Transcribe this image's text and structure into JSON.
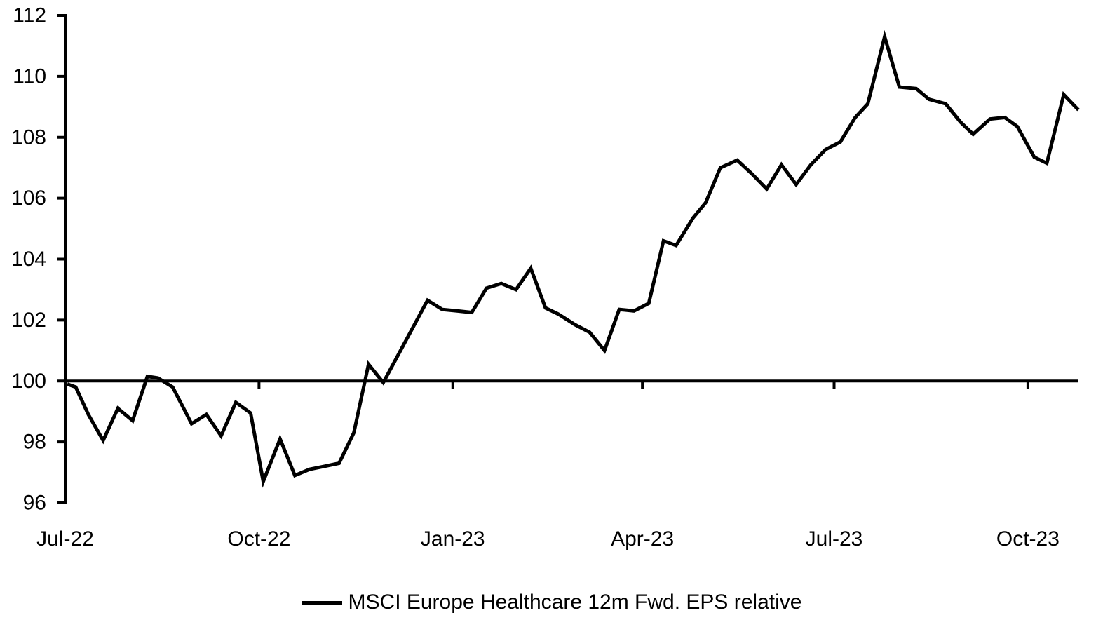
{
  "chart_data": {
    "type": "line",
    "title": "",
    "grid": false,
    "legend_position": "bottom",
    "background_color": "#ffffff",
    "axis_color": "#000000",
    "baseline_value": 100,
    "ylim": [
      96,
      112
    ],
    "y_ticks": [
      112,
      110,
      108,
      106,
      104,
      102,
      100,
      98,
      96
    ],
    "x_ticks": [
      {
        "date": "2022-07-01",
        "label": "Jul-22"
      },
      {
        "date": "2022-10-01",
        "label": "Oct-22"
      },
      {
        "date": "2023-01-01",
        "label": "Jan-23"
      },
      {
        "date": "2023-04-01",
        "label": "Apr-23"
      },
      {
        "date": "2023-07-01",
        "label": "Jul-23"
      },
      {
        "date": "2023-10-01",
        "label": "Oct-23"
      }
    ],
    "x_range": {
      "start": "2022-07-01",
      "end": "2023-10-25"
    },
    "legend_label": "MSCI Europe Healthcare 12m Fwd. EPS relative",
    "series": [
      {
        "name": "MSCI Europe Healthcare 12m Fwd. EPS relative",
        "color": "#000000",
        "points": [
          [
            "2022-07-02",
            99.9
          ],
          [
            "2022-07-06",
            99.8
          ],
          [
            "2022-07-12",
            98.9
          ],
          [
            "2022-07-19",
            98.05
          ],
          [
            "2022-07-26",
            99.1
          ],
          [
            "2022-08-02",
            98.7
          ],
          [
            "2022-08-09",
            100.15
          ],
          [
            "2022-08-14",
            100.1
          ],
          [
            "2022-08-21",
            99.8
          ],
          [
            "2022-08-30",
            98.6
          ],
          [
            "2022-09-06",
            98.9
          ],
          [
            "2022-09-13",
            98.2
          ],
          [
            "2022-09-20",
            99.3
          ],
          [
            "2022-09-27",
            98.95
          ],
          [
            "2022-10-03",
            96.7
          ],
          [
            "2022-10-11",
            98.1
          ],
          [
            "2022-10-18",
            96.9
          ],
          [
            "2022-10-25",
            97.1
          ],
          [
            "2022-11-01",
            97.2
          ],
          [
            "2022-11-08",
            97.3
          ],
          [
            "2022-11-15",
            98.3
          ],
          [
            "2022-11-22",
            100.55
          ],
          [
            "2022-11-29",
            99.95
          ],
          [
            "2022-12-06",
            100.85
          ],
          [
            "2022-12-13",
            101.75
          ],
          [
            "2022-12-20",
            102.65
          ],
          [
            "2022-12-27",
            102.35
          ],
          [
            "2023-01-03",
            102.3
          ],
          [
            "2023-01-10",
            102.25
          ],
          [
            "2023-01-17",
            103.05
          ],
          [
            "2023-01-24",
            103.2
          ],
          [
            "2023-01-31",
            103.0
          ],
          [
            "2023-02-07",
            103.7
          ],
          [
            "2023-02-14",
            102.4
          ],
          [
            "2023-02-20",
            102.2
          ],
          [
            "2023-02-28",
            101.85
          ],
          [
            "2023-03-07",
            101.6
          ],
          [
            "2023-03-14",
            101.0
          ],
          [
            "2023-03-21",
            102.35
          ],
          [
            "2023-03-28",
            102.3
          ],
          [
            "2023-04-04",
            102.55
          ],
          [
            "2023-04-11",
            104.6
          ],
          [
            "2023-04-17",
            104.45
          ],
          [
            "2023-04-25",
            105.35
          ],
          [
            "2023-05-01",
            105.85
          ],
          [
            "2023-05-08",
            107.0
          ],
          [
            "2023-05-16",
            107.25
          ],
          [
            "2023-05-23",
            106.8
          ],
          [
            "2023-05-30",
            106.3
          ],
          [
            "2023-06-06",
            107.1
          ],
          [
            "2023-06-13",
            106.45
          ],
          [
            "2023-06-20",
            107.1
          ],
          [
            "2023-06-27",
            107.6
          ],
          [
            "2023-07-04",
            107.85
          ],
          [
            "2023-07-11",
            108.65
          ],
          [
            "2023-07-17",
            109.1
          ],
          [
            "2023-07-25",
            111.3
          ],
          [
            "2023-08-01",
            109.65
          ],
          [
            "2023-08-09",
            109.6
          ],
          [
            "2023-08-15",
            109.25
          ],
          [
            "2023-08-23",
            109.1
          ],
          [
            "2023-08-30",
            108.5
          ],
          [
            "2023-09-05",
            108.1
          ],
          [
            "2023-09-13",
            108.6
          ],
          [
            "2023-09-20",
            108.65
          ],
          [
            "2023-09-26",
            108.35
          ],
          [
            "2023-10-04",
            107.35
          ],
          [
            "2023-10-10",
            107.15
          ],
          [
            "2023-10-18",
            109.4
          ],
          [
            "2023-10-25",
            108.9
          ]
        ]
      }
    ]
  }
}
